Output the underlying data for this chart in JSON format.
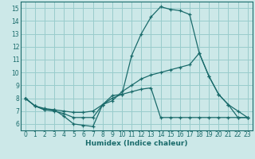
{
  "xlabel": "Humidex (Indice chaleur)",
  "bg_color": "#cce8e8",
  "grid_color": "#99cccc",
  "line_color": "#1a6b6b",
  "xlim": [
    -0.5,
    23.5
  ],
  "ylim": [
    5.5,
    15.5
  ],
  "xticks": [
    0,
    1,
    2,
    3,
    4,
    5,
    6,
    7,
    8,
    9,
    10,
    11,
    12,
    13,
    14,
    15,
    16,
    17,
    18,
    19,
    20,
    21,
    22,
    23
  ],
  "yticks": [
    6,
    7,
    8,
    9,
    10,
    11,
    12,
    13,
    14,
    15
  ],
  "line1_x": [
    0,
    1,
    2,
    3,
    4,
    5,
    6,
    7,
    8,
    9,
    10,
    11,
    12,
    13,
    14,
    15,
    16,
    17,
    18,
    19,
    20,
    21,
    22,
    23
  ],
  "line1_y": [
    8.0,
    7.4,
    7.1,
    7.1,
    6.6,
    6.0,
    5.9,
    5.8,
    7.5,
    8.2,
    8.3,
    11.3,
    13.0,
    14.3,
    15.1,
    14.9,
    14.8,
    14.5,
    11.5,
    9.7,
    8.3,
    7.5,
    6.5,
    6.5
  ],
  "line2_x": [
    0,
    1,
    2,
    3,
    4,
    5,
    6,
    7,
    8,
    9,
    10,
    11,
    12,
    13,
    14,
    15,
    16,
    17,
    18,
    19,
    20,
    21,
    22,
    23
  ],
  "line2_y": [
    8.0,
    7.4,
    7.2,
    7.1,
    7.0,
    6.9,
    6.9,
    7.0,
    7.5,
    7.8,
    8.5,
    9.0,
    9.5,
    9.8,
    10.0,
    10.2,
    10.4,
    10.6,
    11.5,
    9.7,
    8.3,
    7.5,
    7.0,
    6.5
  ],
  "line3_x": [
    0,
    1,
    2,
    3,
    4,
    5,
    6,
    7,
    8,
    9,
    10,
    11,
    12,
    13,
    14,
    15,
    16,
    17,
    18,
    19,
    20,
    21,
    22,
    23
  ],
  "line3_y": [
    8.0,
    7.4,
    7.1,
    7.0,
    6.8,
    6.5,
    6.5,
    6.5,
    7.5,
    8.0,
    8.3,
    8.5,
    8.7,
    8.8,
    6.5,
    6.5,
    6.5,
    6.5,
    6.5,
    6.5,
    6.5,
    6.5,
    6.5,
    6.5
  ]
}
